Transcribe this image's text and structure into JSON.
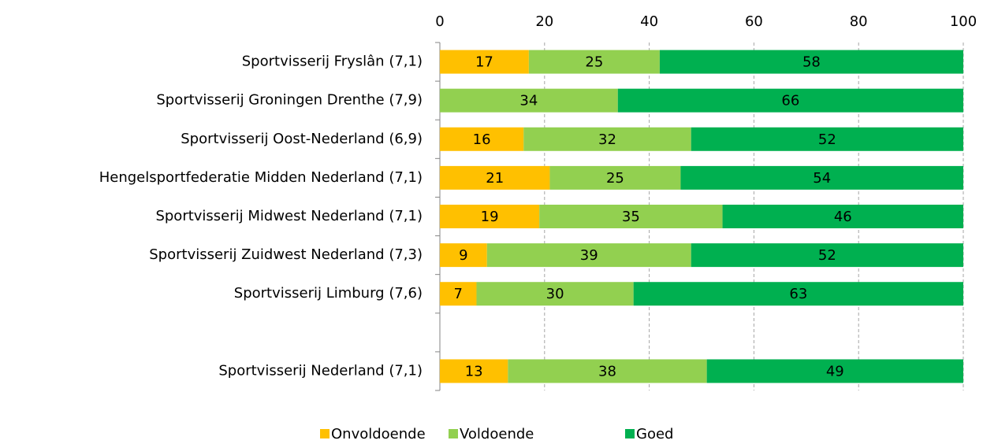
{
  "chart_data": {
    "type": "stacked_barh",
    "categories": [
      "Sportvisserij Fryslân (7,1)",
      "Sportvisserij Groningen Drenthe (7,9)",
      "Sportvisserij Oost-Nederland (6,9)",
      "Hengelsportfederatie Midden Nederland (7,1)",
      "Sportvisserij Midwest Nederland (7,1)",
      "Sportvisserij Zuidwest Nederland (7,3)",
      "Sportvisserij Limburg (7,6)",
      null,
      "Sportvisserij Nederland (7,1)"
    ],
    "series": [
      {
        "name": "Onvoldoende",
        "color": "#ffc000",
        "values": [
          17,
          null,
          16,
          21,
          19,
          9,
          7,
          null,
          13
        ]
      },
      {
        "name": "Voldoende",
        "color": "#92d050",
        "values": [
          25,
          34,
          32,
          25,
          35,
          39,
          30,
          null,
          38
        ]
      },
      {
        "name": "Goed",
        "color": "#00b050",
        "values": [
          58,
          66,
          52,
          54,
          46,
          52,
          63,
          null,
          49
        ]
      }
    ],
    "xlim": [
      0,
      100
    ],
    "xticks": [
      0,
      20,
      40,
      60,
      80,
      100
    ],
    "grid": true,
    "legend": "bottom"
  }
}
